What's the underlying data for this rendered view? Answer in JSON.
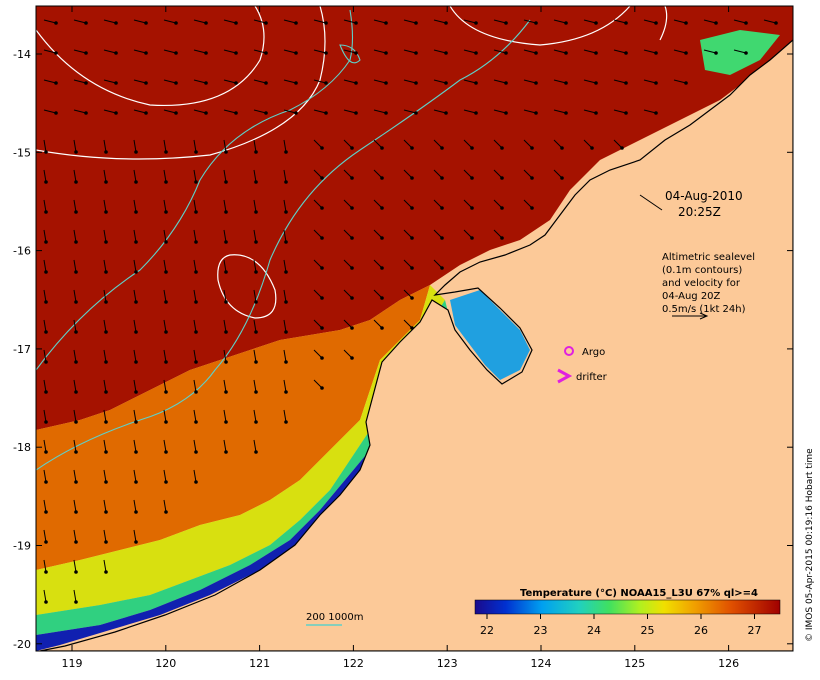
{
  "map": {
    "land_color": "#fcc998",
    "contour_color": "#ffffff",
    "isobath_color": "#5fd0c8",
    "lon_ticks": [
      {
        "label": "119",
        "value": 119
      },
      {
        "label": "120",
        "value": 120
      },
      {
        "label": "121",
        "value": 121
      },
      {
        "label": "122",
        "value": 122
      },
      {
        "label": "123",
        "value": 123
      },
      {
        "label": "124",
        "value": 124
      },
      {
        "label": "125",
        "value": 125
      },
      {
        "label": "126",
        "value": 126
      }
    ],
    "lat_ticks": [
      {
        "label": "-14",
        "value": -14
      },
      {
        "label": "-15",
        "value": -15
      },
      {
        "label": "-16",
        "value": -16
      },
      {
        "label": "-17",
        "value": -17
      },
      {
        "label": "-18",
        "value": -18
      },
      {
        "label": "-19",
        "value": -19
      },
      {
        "label": "-20",
        "value": -20
      }
    ]
  },
  "annotations": {
    "date": "04-Aug-2010",
    "time": "20:25Z",
    "altimetry": [
      "Altimetric sealevel",
      "(0.1m contours)",
      "and velocity for",
      "04-Aug 20Z",
      "0.5m/s (1kt 24h)"
    ],
    "argo_label": "Argo",
    "drifter_label": "drifter",
    "isobath_label": "200  1000m",
    "argo_color": "#e020e0",
    "drifter_color": "#e020e0"
  },
  "colorbar": {
    "title": "Temperature (°C) NOAA15_L3U 67% ql>=4",
    "ticks": [
      "22",
      "23",
      "24",
      "25",
      "26",
      "27"
    ],
    "colors": [
      "#1a0a8c",
      "#0040e0",
      "#00a0f0",
      "#20d0c0",
      "#40e060",
      "#b0f020",
      "#f0e000",
      "#f0a000",
      "#e06000",
      "#c02000",
      "#a00000"
    ]
  },
  "credit": "© IMOS 05-Apr-2015 00:19:16 Hobart time"
}
